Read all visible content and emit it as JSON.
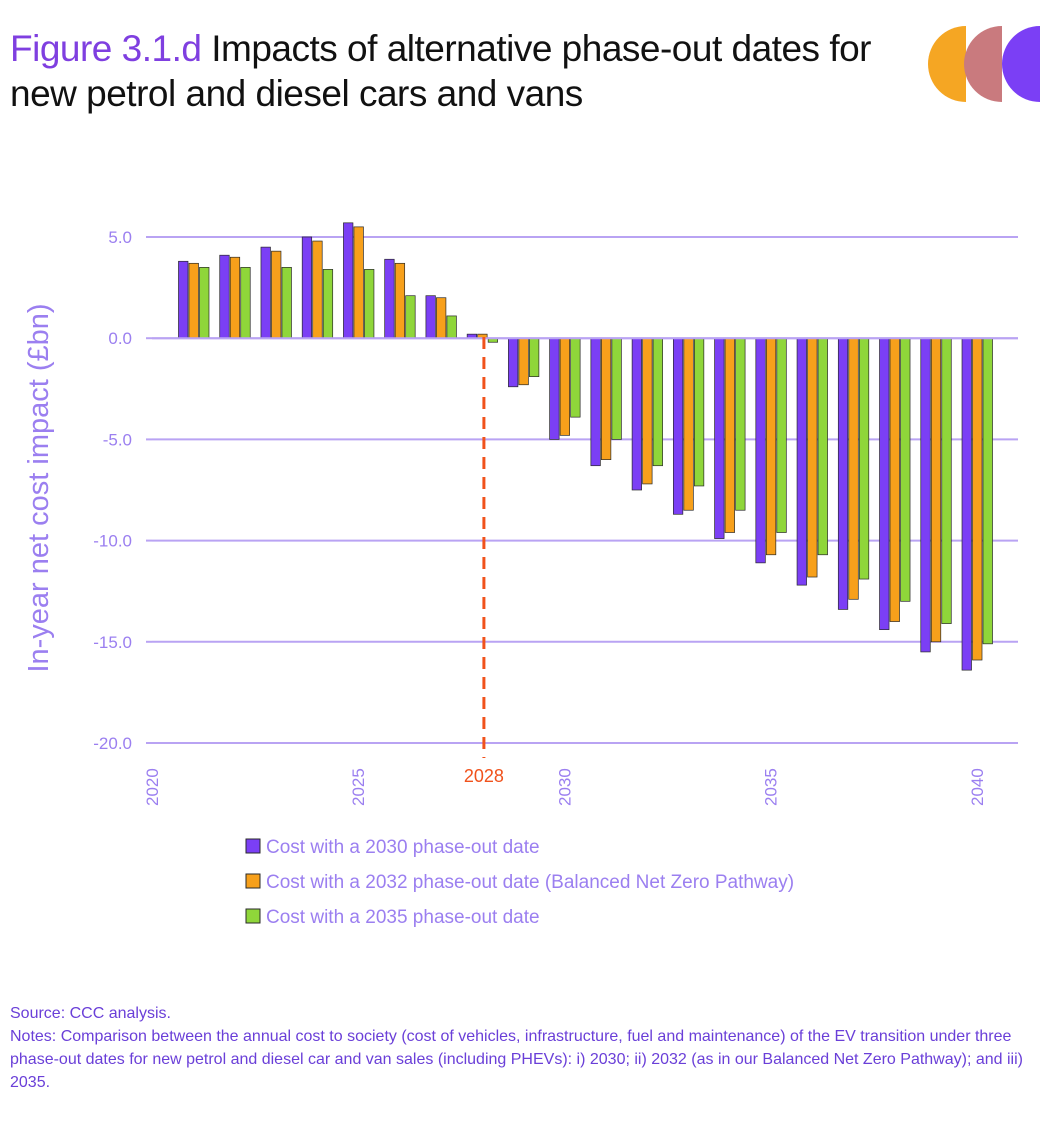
{
  "header": {
    "figure_number": "Figure 3.1.d",
    "title": "Impacts of alternative phase-out dates for new petrol and diesel cars and vans"
  },
  "logo": {
    "colors": [
      "#f5a623",
      "#c97a7e",
      "#7b3ff5"
    ],
    "icon": "ccc-logo-icon"
  },
  "colors": {
    "series": [
      "#7b3ff5",
      "#f7a01b",
      "#8fd63a"
    ],
    "marker": "#f0521c",
    "axis_text": "#9b7ff0",
    "grid": "#b9a3f3"
  },
  "chart_data": {
    "type": "bar",
    "ylabel": "In-year net cost impact (£bn)",
    "ylim": [
      -20,
      5
    ],
    "yticks": [
      5,
      0,
      -5,
      -10,
      -15,
      -20
    ],
    "ytick_labels": [
      "5.0",
      "0.0",
      "-5.0",
      "-10.0",
      "-15.0",
      "-20.0"
    ],
    "xlim": [
      2020,
      2040
    ],
    "xtick_labels": [
      "2020",
      "2025",
      "2030",
      "2035",
      "2040"
    ],
    "grid": true,
    "legend_position": "bottom",
    "categories": [
      2021,
      2022,
      2023,
      2024,
      2025,
      2026,
      2027,
      2028,
      2029,
      2030,
      2031,
      2032,
      2033,
      2034,
      2035,
      2036,
      2037,
      2038,
      2039,
      2040
    ],
    "series": [
      {
        "name": "Cost with a 2030 phase-out date",
        "values": [
          3.8,
          4.1,
          4.5,
          5.0,
          5.7,
          3.9,
          2.1,
          0.2,
          -2.4,
          -5.0,
          -6.3,
          -7.5,
          -8.7,
          -9.9,
          -11.1,
          -12.2,
          -13.4,
          -14.4,
          -15.5,
          -16.4
        ]
      },
      {
        "name": "Cost with a 2032 phase-out date (Balanced Net Zero Pathway)",
        "values": [
          3.7,
          4.0,
          4.3,
          4.8,
          5.5,
          3.7,
          2.0,
          0.2,
          -2.3,
          -4.8,
          -6.0,
          -7.2,
          -8.5,
          -9.6,
          -10.7,
          -11.8,
          -12.9,
          -14.0,
          -15.0,
          -15.9
        ]
      },
      {
        "name": "Cost with a 2035 phase-out date",
        "values": [
          3.5,
          3.5,
          3.5,
          3.4,
          3.4,
          2.1,
          1.1,
          -0.2,
          -1.9,
          -3.9,
          -5.0,
          -6.3,
          -7.3,
          -8.5,
          -9.6,
          -10.7,
          -11.9,
          -13.0,
          -14.1,
          -15.1
        ]
      }
    ],
    "annotation": {
      "label": "2028",
      "x": 2028
    }
  },
  "notes": {
    "source": "Source: CCC analysis.",
    "text": "Notes: Comparison between the annual cost to society (cost of vehicles, infrastructure, fuel and maintenance) of the EV transition under three phase-out dates for new petrol and diesel car and van sales (including PHEVs): i) 2030; ii) 2032 (as in our Balanced Net Zero Pathway); and iii) 2035."
  }
}
